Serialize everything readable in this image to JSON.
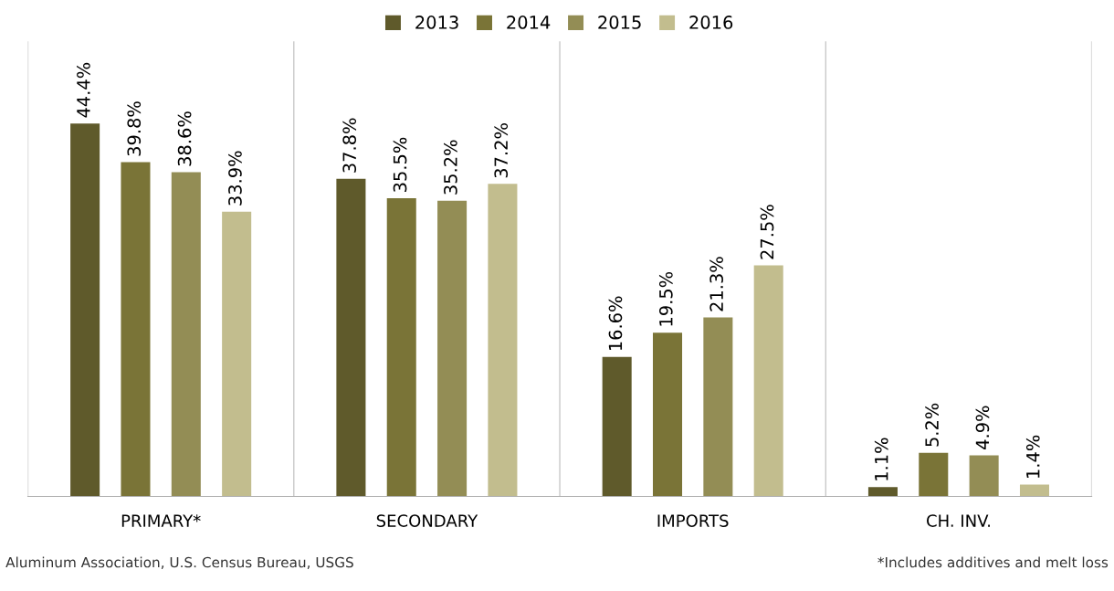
{
  "chart_data": {
    "type": "bar",
    "categories": [
      "PRIMARY*",
      "SECONDARY",
      "IMPORTS",
      "CH. INV."
    ],
    "series": [
      {
        "name": "2013",
        "color": "#5f5a2b",
        "values": [
          44.4,
          37.8,
          16.6,
          1.1
        ],
        "value_labels": [
          "44.4%",
          "37.8%",
          "16.6%",
          "1.1%"
        ]
      },
      {
        "name": "2014",
        "color": "#7a7437",
        "values": [
          39.8,
          35.5,
          19.5,
          5.2
        ],
        "value_labels": [
          "39.8%",
          "35.5%",
          "19.5%",
          "5.2%"
        ]
      },
      {
        "name": "2015",
        "color": "#938d55",
        "values": [
          38.6,
          35.2,
          21.3,
          4.9
        ],
        "value_labels": [
          "38.6%",
          "35.2%",
          "21.3%",
          "4.9%"
        ]
      },
      {
        "name": "2016",
        "color": "#c2bd8e",
        "values": [
          33.9,
          37.2,
          27.5,
          1.4
        ],
        "value_labels": [
          "33.9%",
          "37.2%",
          "27.5%",
          "1.4%"
        ]
      }
    ],
    "grid": "x",
    "legend": "top",
    "annotations": [
      "Aluminum Association, U.S. Census Bureau, USGS",
      "*Includes additives and melt loss"
    ]
  }
}
